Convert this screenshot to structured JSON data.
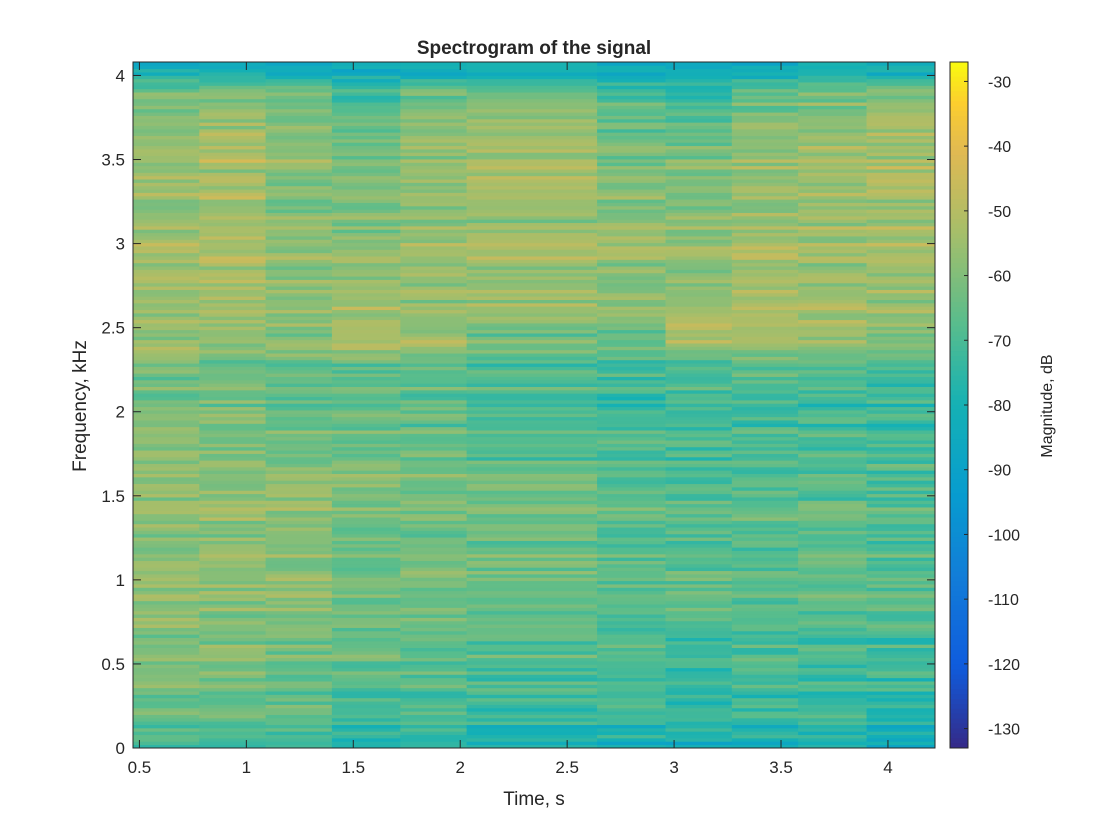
{
  "chart_data": {
    "type": "heatmap",
    "title": "Spectrogram of the signal",
    "xlabel": "Time, s",
    "ylabel": "Frequency, kHz",
    "xlim": [
      0.47,
      4.22
    ],
    "ylim": [
      0,
      4.08
    ],
    "x_ticks": [
      0.5,
      1,
      1.5,
      2,
      2.5,
      3,
      3.5,
      4
    ],
    "x_tick_labels": [
      "0.5",
      "1",
      "1.5",
      "2",
      "2.5",
      "3",
      "3.5",
      "4"
    ],
    "y_ticks": [
      0,
      0.5,
      1,
      1.5,
      2,
      2.5,
      3,
      3.5,
      4
    ],
    "y_tick_labels": [
      "0",
      "0.5",
      "1",
      "1.5",
      "2",
      "2.5",
      "3",
      "3.5",
      "4"
    ],
    "colorbar": {
      "label": "Magnitude, dB",
      "range": [
        -133,
        -27
      ],
      "ticks": [
        -30,
        -40,
        -50,
        -60,
        -70,
        -80,
        -90,
        -100,
        -110,
        -120,
        -130
      ],
      "tick_labels": [
        "-30",
        "-40",
        "-50",
        "-60",
        "-70",
        "-80",
        "-90",
        "-100",
        "-110",
        "-120",
        "-130"
      ],
      "colormap": "parula"
    },
    "time_segments": [
      0.47,
      0.78,
      1.09,
      1.4,
      1.72,
      2.03,
      2.64,
      2.96,
      3.27,
      3.58,
      3.9,
      4.22
    ],
    "frequency_profile": {
      "frequency_kHz": [
        0,
        0.2,
        0.5,
        1.0,
        1.5,
        2.0,
        2.3,
        2.45,
        2.6,
        3.0,
        3.5,
        3.9,
        4.0,
        4.08
      ],
      "magnitude_dB_by_segment": [
        [
          -75,
          -65,
          -62,
          -57,
          -56,
          -62,
          -62,
          -57,
          -56,
          -53,
          -55,
          -60,
          -80,
          -84
        ],
        [
          -75,
          -66,
          -62,
          -57,
          -57,
          -62,
          -63,
          -58,
          -55,
          -52,
          -53,
          -60,
          -80,
          -84
        ],
        [
          -78,
          -66,
          -64,
          -58,
          -58,
          -65,
          -64,
          -58,
          -57,
          -58,
          -57,
          -62,
          -80,
          -84
        ],
        [
          -82,
          -72,
          -66,
          -62,
          -61,
          -67,
          -65,
          -50,
          -55,
          -58,
          -62,
          -70,
          -82,
          -85
        ],
        [
          -80,
          -70,
          -66,
          -62,
          -62,
          -67,
          -65,
          -53,
          -56,
          -55,
          -57,
          -62,
          -82,
          -85
        ],
        [
          -82,
          -72,
          -68,
          -62,
          -64,
          -70,
          -68,
          -62,
          -56,
          -55,
          -54,
          -60,
          -80,
          -84
        ],
        [
          -84,
          -74,
          -70,
          -66,
          -66,
          -72,
          -70,
          -64,
          -58,
          -56,
          -62,
          -68,
          -82,
          -85
        ],
        [
          -84,
          -74,
          -72,
          -66,
          -68,
          -72,
          -68,
          -50,
          -54,
          -58,
          -62,
          -72,
          -84,
          -86
        ],
        [
          -84,
          -74,
          -70,
          -66,
          -67,
          -72,
          -66,
          -54,
          -54,
          -52,
          -56,
          -64,
          -82,
          -85
        ],
        [
          -84,
          -74,
          -70,
          -66,
          -66,
          -72,
          -66,
          -54,
          -56,
          -55,
          -55,
          -60,
          -80,
          -84
        ],
        [
          -85,
          -76,
          -72,
          -68,
          -68,
          -74,
          -70,
          -60,
          -56,
          -54,
          -53,
          -60,
          -80,
          -84
        ]
      ]
    }
  }
}
